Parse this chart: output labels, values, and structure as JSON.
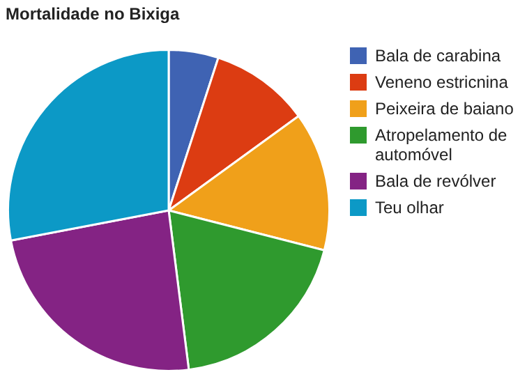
{
  "chart_data": {
    "type": "pie",
    "title": "Mortalidade no Bixiga",
    "categories": [
      "Bala de carabina",
      "Veneno estricnina",
      "Peixeira de baiano",
      "Atropelamento de automóvel",
      "Bala de revólver",
      "Teu olhar"
    ],
    "values": [
      5,
      10,
      14,
      19,
      24,
      28
    ],
    "colors": [
      "#3f63b3",
      "#dc3c12",
      "#f0a01a",
      "#2f9a2e",
      "#842384",
      "#0c99c6"
    ],
    "legend": "right"
  }
}
